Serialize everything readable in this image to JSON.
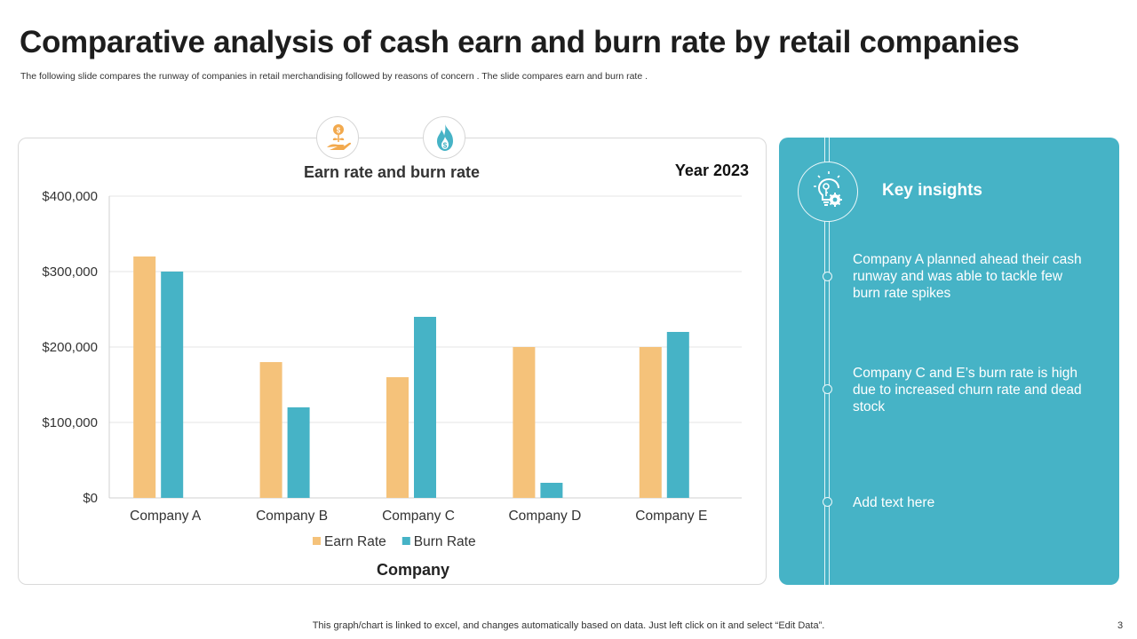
{
  "slide": {
    "title": "Comparative analysis of cash earn and burn rate by retail companies",
    "subtitle": "The following slide compares the runway of companies in retail merchandising followed by reasons of concern . The slide compares earn and burn rate .",
    "footer": "This graph/chart is linked to excel, and changes automatically based on data. Just left click on it and select “Edit Data”.",
    "page_number": "3"
  },
  "icons": {
    "earn": "money-plant-hand-icon",
    "burn": "dollar-flame-icon",
    "insights": "lightbulb-gear-icon"
  },
  "chart_data": {
    "type": "bar",
    "title": "Earn rate and burn rate",
    "year_label": "Year 2023",
    "xlabel": "Company",
    "ylabel": "",
    "categories": [
      "Company A",
      "Company B",
      "Company C",
      "Company D",
      "Company E"
    ],
    "series": [
      {
        "name": "Earn Rate",
        "color": "#f5c27a",
        "values": [
          320000,
          180000,
          160000,
          200000,
          200000
        ]
      },
      {
        "name": "Burn Rate",
        "color": "#46b3c6",
        "values": [
          300000,
          120000,
          240000,
          20000,
          220000
        ]
      }
    ],
    "ylim": [
      0,
      400000
    ],
    "yticks": [
      0,
      100000,
      200000,
      300000,
      400000
    ],
    "ytick_labels": [
      "$0",
      "$100,000",
      "$200,000",
      "$300,000",
      "$400,000"
    ],
    "grid": true,
    "legend": "bottom"
  },
  "insights": {
    "title": "Key insights",
    "items": [
      "Company A planned ahead their cash runway  and was able to tackle few burn  rate spikes",
      "Company C and E’s burn rate is high due to increased churn  rate and dead stock",
      "Add text here"
    ]
  },
  "colors": {
    "accent": "#46b3c6",
    "earn": "#f5c27a",
    "burn": "#46b3c6"
  }
}
